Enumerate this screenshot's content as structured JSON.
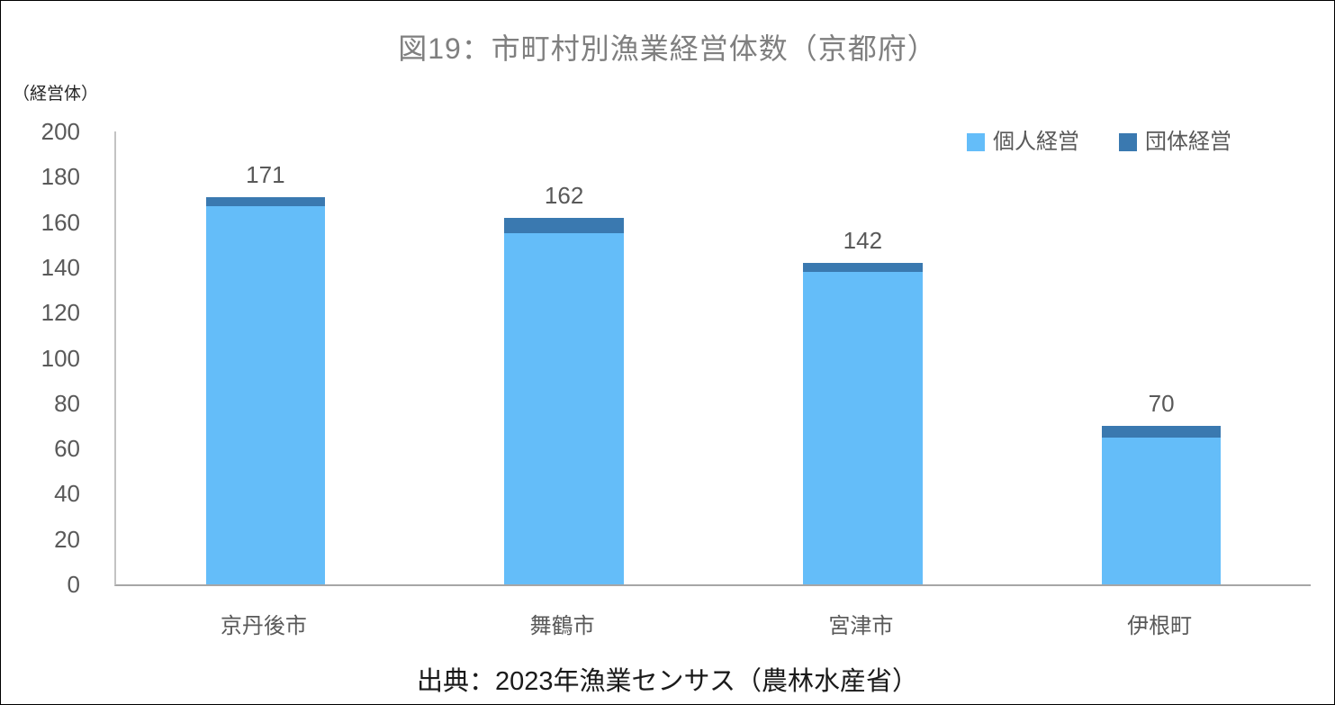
{
  "title": "図19：市町村別漁業経営体数（京都府）",
  "unit_label": "（経営体）",
  "source": "出典：2023年漁業センサス（農林水産省）",
  "colors": {
    "individual": "#64bdf9",
    "group": "#3a79b0",
    "title_text": "#7f7f7f",
    "axis_text": "#595959",
    "axis_line_vertical": "#c3c3c3",
    "axis_line_horizontal": "#a6a6a6"
  },
  "legend": {
    "items": [
      {
        "label": "個人経営",
        "color": "#64bdf9"
      },
      {
        "label": "団体経営",
        "color": "#3a79b0"
      }
    ]
  },
  "chart_data": {
    "type": "bar",
    "stacked": true,
    "title": "図19：市町村別漁業経営体数（京都府）",
    "ylabel": "（経営体）",
    "categories": [
      "京丹後市",
      "舞鶴市",
      "宮津市",
      "伊根町"
    ],
    "series": [
      {
        "name": "個人経営",
        "color": "#64bdf9",
        "values": [
          167,
          155,
          138,
          65
        ]
      },
      {
        "name": "団体経営",
        "color": "#3a79b0",
        "values": [
          4,
          7,
          4,
          5
        ]
      }
    ],
    "totals": [
      171,
      162,
      142,
      70
    ],
    "total_labels": [
      "171",
      "162",
      "142",
      "70"
    ],
    "ylim": [
      0,
      200
    ],
    "yticks": [
      0,
      20,
      40,
      60,
      80,
      100,
      120,
      140,
      160,
      180,
      200
    ],
    "grid": false,
    "legend_position": "top-right"
  }
}
